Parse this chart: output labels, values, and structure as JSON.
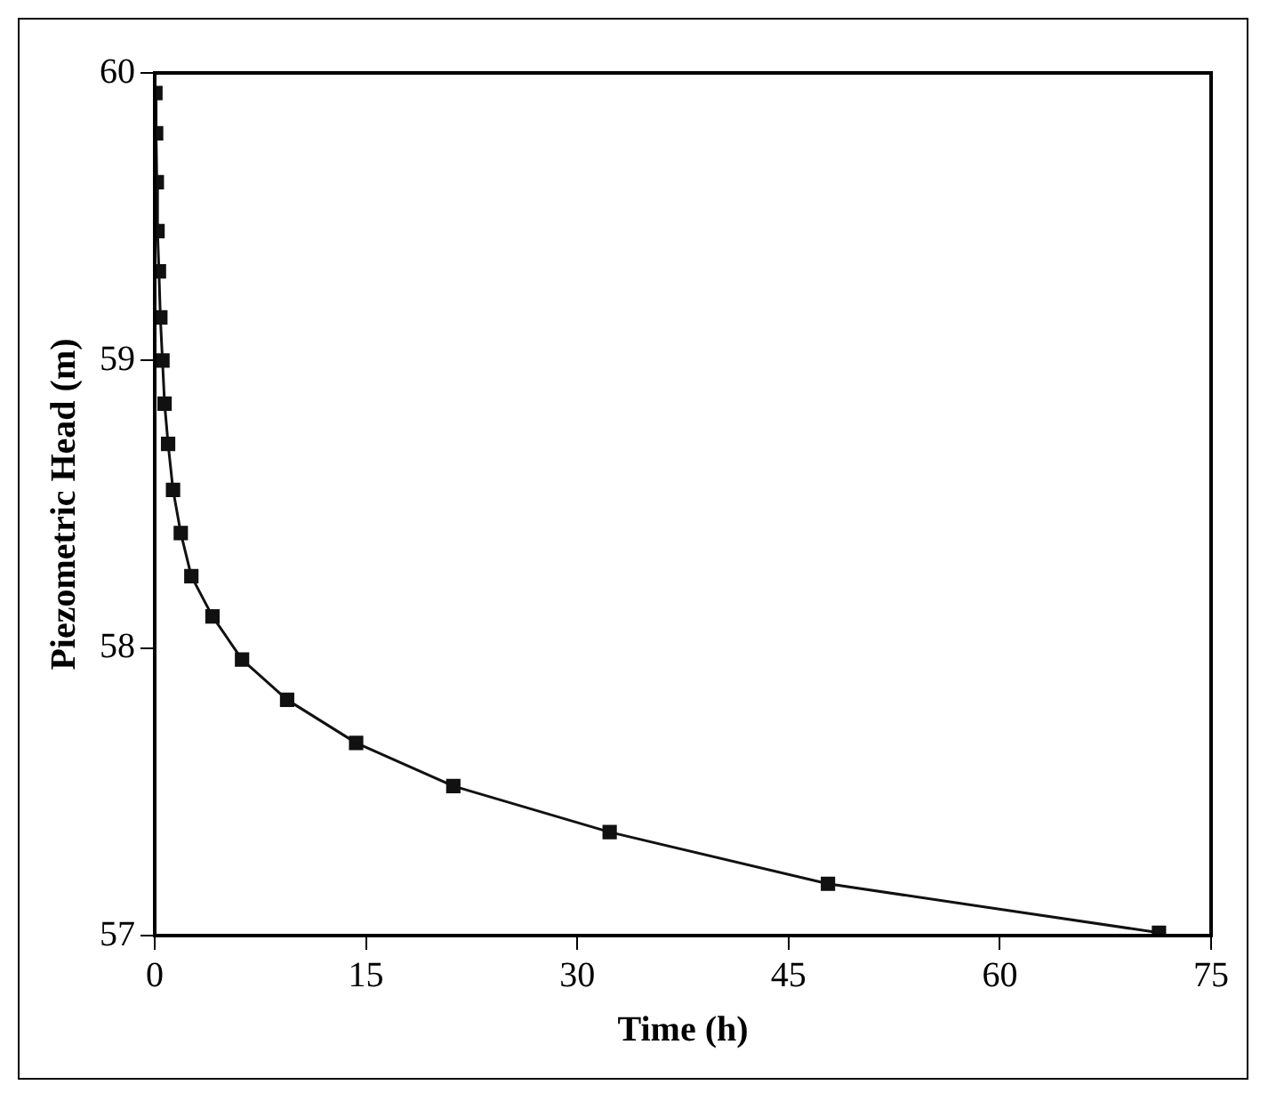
{
  "chart_data": {
    "type": "scatter",
    "xlabel": "Time (h)",
    "ylabel": "Piezometric Head (m)",
    "xlim": [
      0,
      75
    ],
    "xticks": [
      0,
      15,
      30,
      45,
      60,
      75
    ],
    "ylim": [
      57,
      60
    ],
    "yticks": [
      57,
      58,
      59,
      60
    ],
    "grid": false,
    "legend": false,
    "series": [
      {
        "marker": "square",
        "color": "#111111",
        "x": [
          0.05,
          0.1,
          0.15,
          0.2,
          0.3,
          0.4,
          0.55,
          0.7,
          0.95,
          1.3,
          1.85,
          2.6,
          4.1,
          6.2,
          9.4,
          14.3,
          21.2,
          32.3,
          47.8,
          71.3
        ],
        "values": [
          59.93,
          59.79,
          59.62,
          59.45,
          59.31,
          59.15,
          59.0,
          58.85,
          58.71,
          58.55,
          58.4,
          58.25,
          58.11,
          57.96,
          57.82,
          57.67,
          57.52,
          57.36,
          57.18,
          57.01
        ]
      },
      {
        "type": "line",
        "marker": "none",
        "line_style": "solid",
        "color": "#111111",
        "x": [
          0.05,
          0.1,
          0.15,
          0.2,
          0.3,
          0.4,
          0.55,
          0.7,
          0.95,
          1.3,
          1.85,
          2.6,
          4.1,
          6.2,
          9.4,
          14.3,
          21.2,
          32.3,
          47.8,
          71.3
        ],
        "values": [
          59.93,
          59.79,
          59.62,
          59.45,
          59.31,
          59.15,
          59.0,
          58.85,
          58.71,
          58.55,
          58.4,
          58.25,
          58.11,
          57.96,
          57.82,
          57.67,
          57.52,
          57.36,
          57.18,
          57.01
        ]
      }
    ]
  }
}
